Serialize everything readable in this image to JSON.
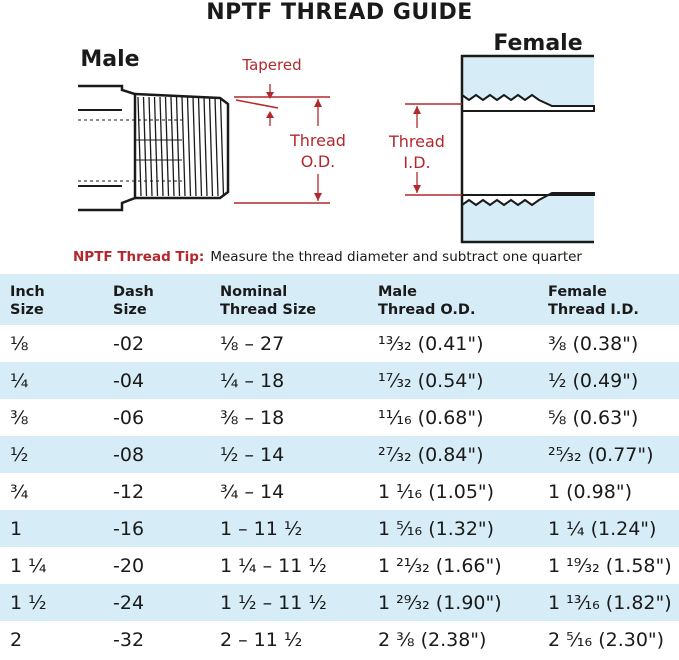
{
  "title": "NPTF THREAD GUIDE",
  "diagram": {
    "male_label": "Male",
    "female_label": "Female",
    "tapered_label": "Tapered",
    "thread_od_label_1": "Thread",
    "thread_od_label_2": "O.D.",
    "thread_id_label_1": "Thread",
    "thread_id_label_2": "I.D.",
    "accent_color": "#b3282d",
    "fill_color": "#d6ecf6"
  },
  "tip": {
    "label": "NPTF Thread Tip:",
    "text": "Measure the thread diameter and subtract one quarter"
  },
  "table": {
    "headers": [
      {
        "line1": "Inch",
        "line2": "Size"
      },
      {
        "line1": "Dash",
        "line2": "Size"
      },
      {
        "line1": "Nominal",
        "line2": "Thread Size"
      },
      {
        "line1": "Male",
        "line2": "Thread O.D."
      },
      {
        "line1": "Female",
        "line2": "Thread I.D."
      }
    ],
    "rows": [
      [
        "⅛",
        "-02",
        "⅛ – 27",
        "¹³⁄₃₂ (0.41\")",
        "⅜ (0.38\")"
      ],
      [
        "¼",
        "-04",
        "¼ – 18",
        "¹⁷⁄₃₂ (0.54\")",
        "½ (0.49\")"
      ],
      [
        "⅜",
        "-06",
        "⅜ – 18",
        "¹¹⁄₁₆ (0.68\")",
        "⅝ (0.63\")"
      ],
      [
        "½",
        "-08",
        "½ – 14",
        "²⁷⁄₃₂ (0.84\")",
        "²⁵⁄₃₂ (0.77\")"
      ],
      [
        "¾",
        "-12",
        "¾ – 14",
        "1 ¹⁄₁₆ (1.05\")",
        "1 (0.98\")"
      ],
      [
        "1",
        "-16",
        "1 – 11 ½",
        "1 ⁵⁄₁₆ (1.32\")",
        "1 ¼ (1.24\")"
      ],
      [
        "1 ¼",
        "-20",
        "1 ¼ – 11 ½",
        "1 ²¹⁄₃₂ (1.66\")",
        "1 ¹⁹⁄₃₂ (1.58\")"
      ],
      [
        "1 ½",
        "-24",
        "1 ½ – 11 ½",
        "1 ²⁹⁄₃₂ (1.90\")",
        "1 ¹³⁄₁₆ (1.82\")"
      ],
      [
        "2",
        "-32",
        "2 – 11 ½",
        "2 ⅜ (2.38\")",
        "2 ⁵⁄₁₆ (2.30\")"
      ]
    ]
  }
}
